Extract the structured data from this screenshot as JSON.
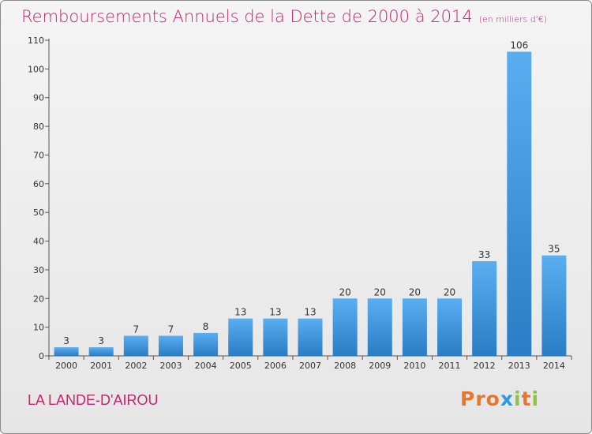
{
  "header": {
    "title": "Remboursements Annuels de la Dette de 2000 à 2014",
    "subtitle": "(en milliers d'€)"
  },
  "footer": {
    "town": "LA LANDE-D'AIROU",
    "logo": "Proxiti"
  },
  "colors": {
    "title": "#c8226d",
    "bar_light": "#5aaef0",
    "bar_dark": "#2a7cc4",
    "logo": [
      "#e8762d",
      "#e8762d",
      "#e8762d",
      "#2d9be0",
      "#8cc63f",
      "#e8762d",
      "#8cc63f"
    ]
  },
  "chart_data": {
    "type": "bar",
    "categories": [
      "2000",
      "2001",
      "2002",
      "2003",
      "2004",
      "2005",
      "2006",
      "2007",
      "2008",
      "2009",
      "2010",
      "2011",
      "2012",
      "2013",
      "2014"
    ],
    "values": [
      3,
      3,
      7,
      7,
      8,
      13,
      13,
      13,
      20,
      20,
      20,
      20,
      33,
      106,
      35
    ],
    "ylim": [
      0,
      110
    ],
    "yticks": [
      0,
      10,
      20,
      30,
      40,
      50,
      60,
      70,
      80,
      90,
      100,
      110
    ],
    "xlabel": "",
    "ylabel": "",
    "grid": false,
    "data_labels": true
  }
}
